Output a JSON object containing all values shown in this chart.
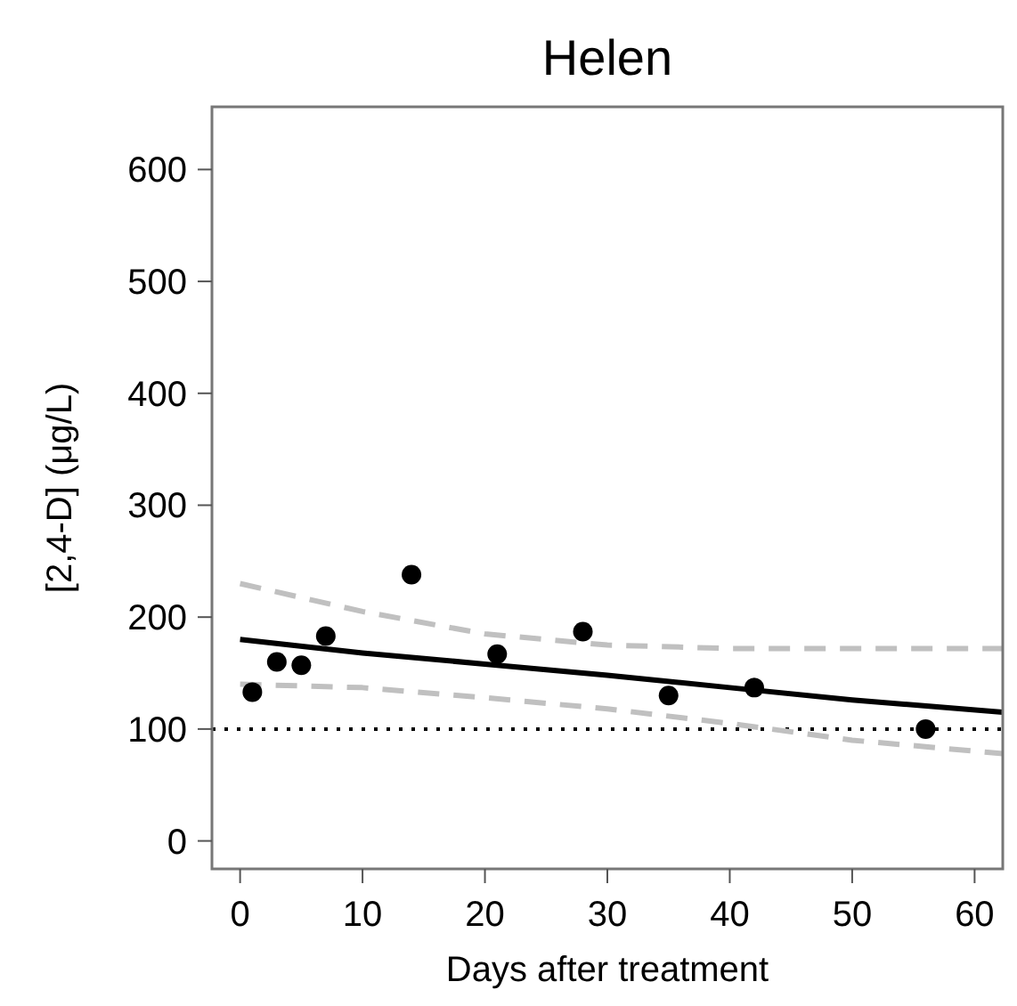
{
  "chart_data": {
    "type": "scatter",
    "title": "Helen",
    "xlabel": "Days after treatment",
    "ylabel": "[2,4-D] (μg/L)",
    "xlim": [
      -2.3,
      62.3
    ],
    "ylim": [
      -25,
      656
    ],
    "xticks": [
      0,
      10,
      20,
      30,
      40,
      50,
      60
    ],
    "yticks": [
      0,
      100,
      200,
      300,
      400,
      500,
      600
    ],
    "grid": false,
    "series": [
      {
        "type": "line",
        "color": "#c0c0c0",
        "line_style": "dashed",
        "marker": "none",
        "x": [
          0,
          10,
          20,
          30,
          40,
          50,
          62.3
        ],
        "values": [
          230,
          205,
          185,
          175,
          172,
          172,
          172
        ]
      },
      {
        "type": "line",
        "color": "#c0c0c0",
        "line_style": "dashed",
        "marker": "none",
        "x": [
          0,
          10,
          20,
          30,
          40,
          50,
          62.3
        ],
        "values": [
          140,
          137,
          128,
          118,
          105,
          90,
          78
        ]
      },
      {
        "type": "line",
        "color": "#000000",
        "line_style": "solid",
        "marker": "none",
        "x": [
          0,
          10,
          20,
          30,
          40,
          50,
          62.3
        ],
        "values": [
          180,
          168,
          158,
          148,
          137,
          126,
          115
        ]
      },
      {
        "color": "#000000",
        "marker": "circle",
        "x": [
          1,
          3,
          5,
          7,
          14,
          21,
          28,
          35,
          42,
          56
        ],
        "values": [
          133,
          160,
          157,
          183,
          238,
          167,
          187,
          130,
          137,
          100
        ]
      }
    ],
    "ref_lines": [
      {
        "axis": "y",
        "value": 100,
        "color": "#000000",
        "line_style": "dotted"
      }
    ]
  }
}
